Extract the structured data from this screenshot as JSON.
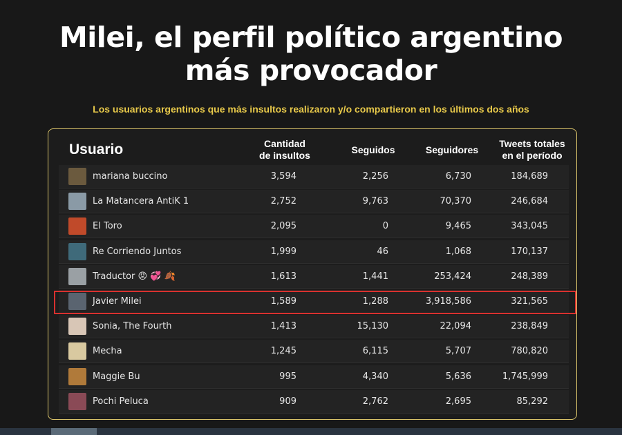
{
  "header": {
    "title_line1": "Milei, el perfil político argentino",
    "title_line2": "más provocador",
    "subtitle": "Los usuarios argentinos que más insultos realizaron y/o compartieron en los últimos dos años"
  },
  "chart_data": {
    "type": "table",
    "columns": [
      "Usuario",
      "Cantidad de insultos",
      "Seguidos",
      "Seguidores",
      "Tweets totales en el período"
    ],
    "column_labels": {
      "user": "Usuario",
      "insults_l1": "Cantidad",
      "insults_l2": "de insultos",
      "following": "Seguidos",
      "followers": "Seguidores",
      "tweets_l1": "Tweets totales",
      "tweets_l2": "en el período"
    },
    "rows": [
      {
        "user": "mariana buccino",
        "insults": "3,594",
        "following": "2,256",
        "followers": "6,730",
        "tweets": "184,689",
        "avatar_color": "#6b5a3e"
      },
      {
        "user": "La Matancera AntiK 1",
        "insults": "2,752",
        "following": "9,763",
        "followers": "70,370",
        "tweets": "246,684",
        "avatar_color": "#8a9aa6"
      },
      {
        "user": "El Toro",
        "insults": "2,095",
        "following": "0",
        "followers": "9,465",
        "tweets": "343,045",
        "avatar_color": "#c04a2a"
      },
      {
        "user": "Re Corriendo Juntos",
        "insults": "1,999",
        "following": "46",
        "followers": "1,068",
        "tweets": "170,137",
        "avatar_color": "#3f6a7a"
      },
      {
        "user": "Traductor 😡 💞 🍂",
        "insults": "1,613",
        "following": "1,441",
        "followers": "253,424",
        "tweets": "248,389",
        "avatar_color": "#9aa0a4"
      },
      {
        "user": "Javier Milei",
        "insults": "1,589",
        "following": "1,288",
        "followers": "3,918,586",
        "tweets": "321,565",
        "avatar_color": "#5a6470"
      },
      {
        "user": "Sonia, The Fourth",
        "insults": "1,413",
        "following": "15,130",
        "followers": "22,094",
        "tweets": "238,849",
        "avatar_color": "#d8c6b6"
      },
      {
        "user": "Mecha",
        "insults": "1,245",
        "following": "6,115",
        "followers": "5,707",
        "tweets": "780,820",
        "avatar_color": "#d9c9a0"
      },
      {
        "user": "Maggie Bu",
        "insults": "995",
        "following": "4,340",
        "followers": "5,636",
        "tweets": "1,745,999",
        "avatar_color": "#b07a3a"
      },
      {
        "user": "Pochi Peluca",
        "insults": "909",
        "following": "2,762",
        "followers": "2,695",
        "tweets": "85,292",
        "avatar_color": "#8a4a56"
      }
    ],
    "highlighted_row": "Javier Milei",
    "highlight_color": "#d9312f"
  },
  "colors": {
    "background": "#181818",
    "title": "#ffffff",
    "subtitle": "#e8c94a",
    "panel_border": "#d9c36a"
  }
}
